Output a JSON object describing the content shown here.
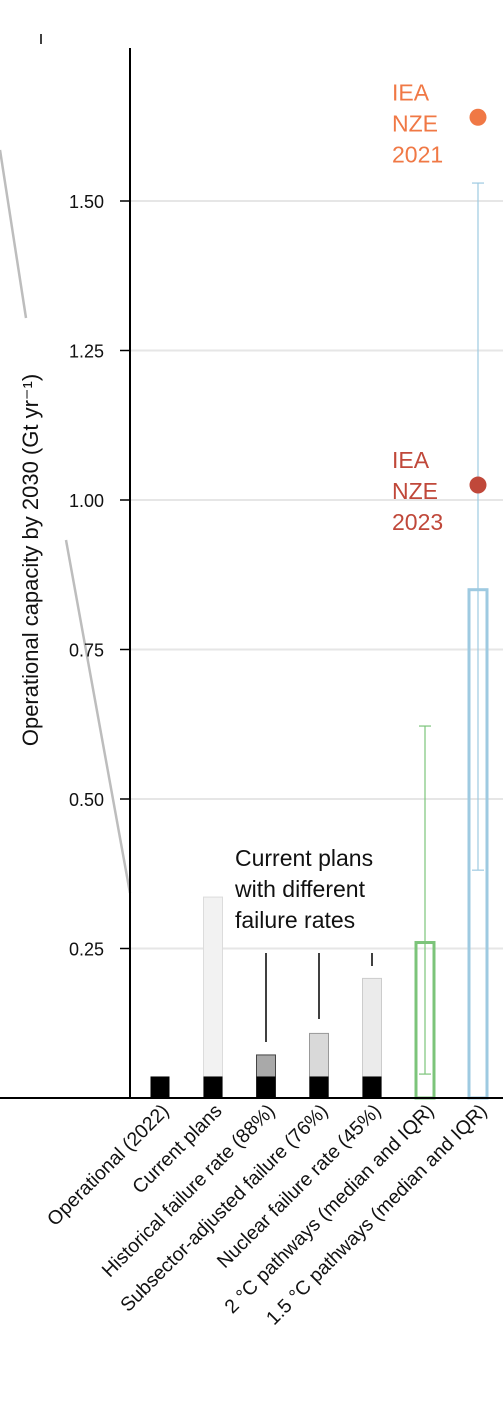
{
  "colors": {
    "operational": "#000000",
    "current_plans": "#f2f2f2",
    "historical": "#a9a9a9",
    "subsector": "#d9d9d9",
    "nuclear": "#ebebeb",
    "pathway_2c": "#7cc47a",
    "pathway_15c": "#9ecae1",
    "iea_2021": "#f07845",
    "iea_2023": "#c0483a",
    "grid": "#e6e6e6",
    "axis": "#000000",
    "connector": "#bdbdbd"
  },
  "chart_data": {
    "type": "bar",
    "ylabel": "Operational capacity by 2030 (Gt yr⁻¹)",
    "ylim": [
      0,
      1.7
    ],
    "yticks": [
      0.25,
      0.5,
      0.75,
      1.0,
      1.25,
      1.5
    ],
    "ytick_labels": [
      "0.25",
      "0.50",
      "0.75",
      "1.00",
      "1.25",
      "1.50"
    ],
    "grid": true,
    "categories": [
      "Operational (2022)",
      "Current plans",
      "Historical failure rate (88%)",
      "Subsector-adjusted failure (76%)",
      "Nuclear failure rate (45%)",
      "2 °C pathways (median and IQR)",
      "1.5 °C pathways (median and IQR)"
    ],
    "operational_base": 0.036,
    "bar_totals": [
      0.036,
      0.336,
      0.072,
      0.108,
      0.2
    ],
    "pathways": [
      {
        "category": "2 °C pathways (median and IQR)",
        "q1": 0.04,
        "median": 0.26,
        "q3": 0.622
      },
      {
        "category": "1.5 °C pathways (median and IQR)",
        "q1": 0.381,
        "median": 0.85,
        "q3": 1.53
      }
    ],
    "points": [
      {
        "label_lines": [
          "IEA",
          "NZE",
          "2021"
        ],
        "value": 1.64
      },
      {
        "label_lines": [
          "IEA",
          "NZE",
          "2023"
        ],
        "value": 1.025
      }
    ],
    "annotation": {
      "lines": [
        "Current plans",
        "with different",
        "failure rates"
      ]
    }
  }
}
